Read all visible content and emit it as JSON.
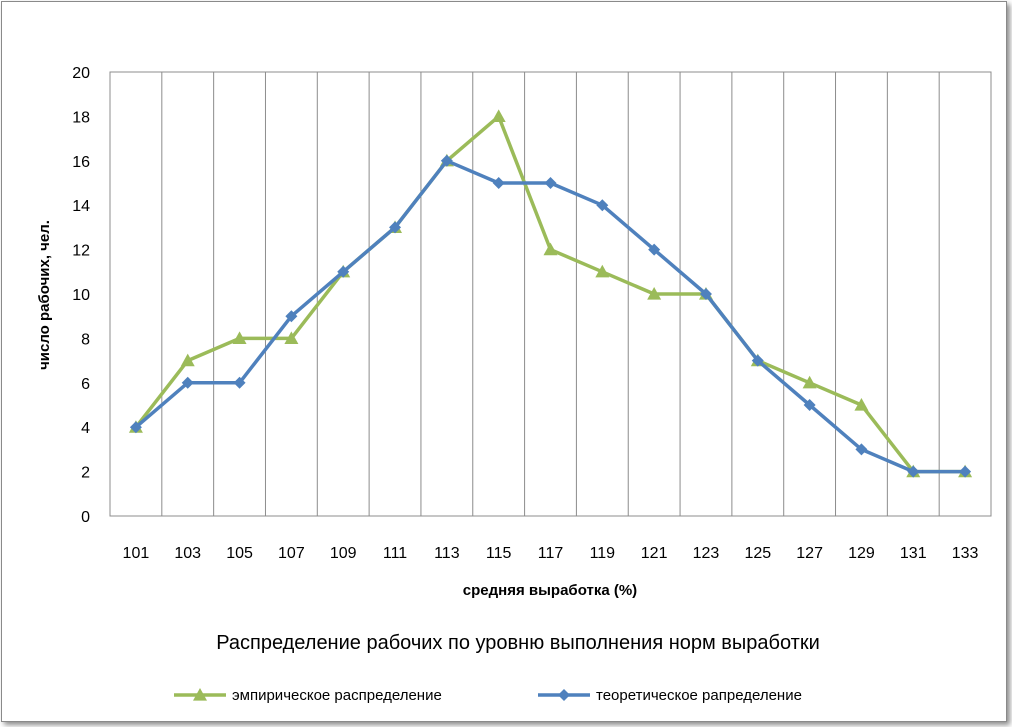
{
  "chart_data": {
    "type": "line",
    "title": "Распределение рабочих по уровню выполнения норм выработки",
    "xlabel": "средняя выработка  (%)",
    "ylabel": "число рабочих,  чел.",
    "categories": [
      "101",
      "103",
      "105",
      "107",
      "109",
      "111",
      "113",
      "115",
      "117",
      "119",
      "121",
      "123",
      "125",
      "127",
      "129",
      "131",
      "133"
    ],
    "ylim": [
      0,
      20
    ],
    "yticks": [
      "0",
      "2",
      "4",
      "6",
      "8",
      "10",
      "12",
      "14",
      "16",
      "18",
      "20"
    ],
    "grid": "vertical lines",
    "legend": "bottom",
    "series": [
      {
        "name": "эмпирическое распределение",
        "color": "#9bbb59",
        "marker": "triangle",
        "values": [
          4,
          7,
          8,
          8,
          11,
          13,
          16,
          18,
          12,
          11,
          10,
          10,
          7,
          6,
          5,
          2,
          2
        ]
      },
      {
        "name": "теоретическое рапределение",
        "color": "#4f81bd",
        "marker": "diamond",
        "values": [
          4,
          6,
          6,
          9,
          11,
          13,
          16,
          15,
          15,
          14,
          12,
          10,
          7,
          5,
          3,
          2,
          2
        ]
      }
    ]
  }
}
